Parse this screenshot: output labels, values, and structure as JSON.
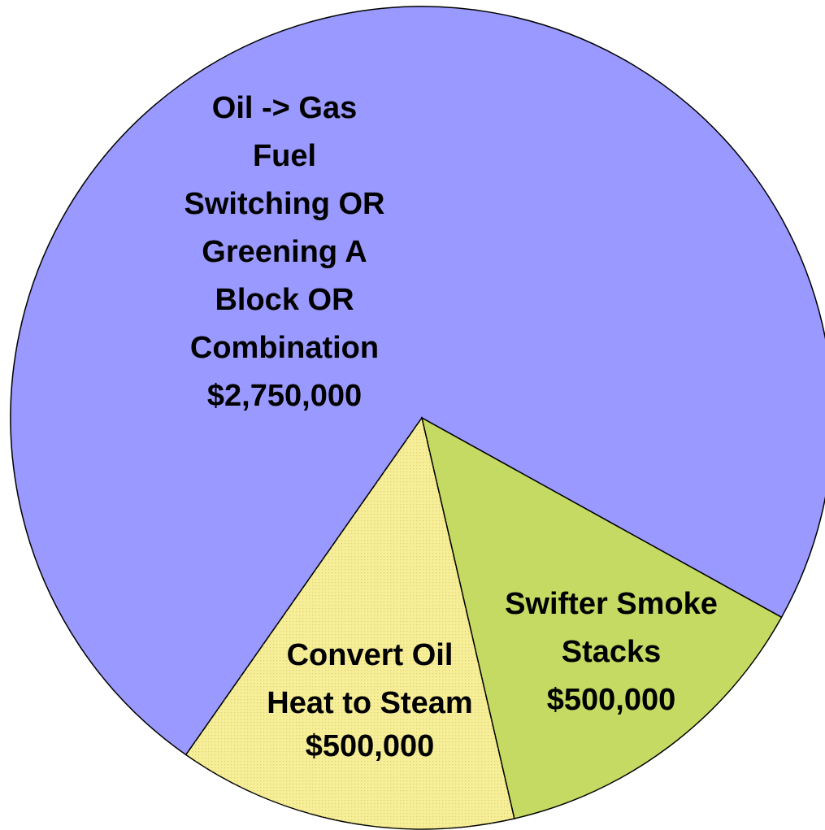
{
  "chart_data": {
    "type": "pie",
    "categories": [
      [
        "Oil -> Gas",
        "Fuel",
        "Switching OR",
        "Greening A",
        "Block OR",
        "Combination"
      ],
      [
        "Swifter Smoke",
        "Stacks"
      ],
      [
        "Convert Oil",
        "Heat to Steam"
      ]
    ],
    "values": [
      2750000,
      500000,
      500000
    ],
    "value_labels": [
      "$2,750,000",
      "$500,000",
      "$500,000"
    ],
    "colors": [
      "#9999ff",
      "#c4da62",
      "#f6ee98"
    ]
  }
}
